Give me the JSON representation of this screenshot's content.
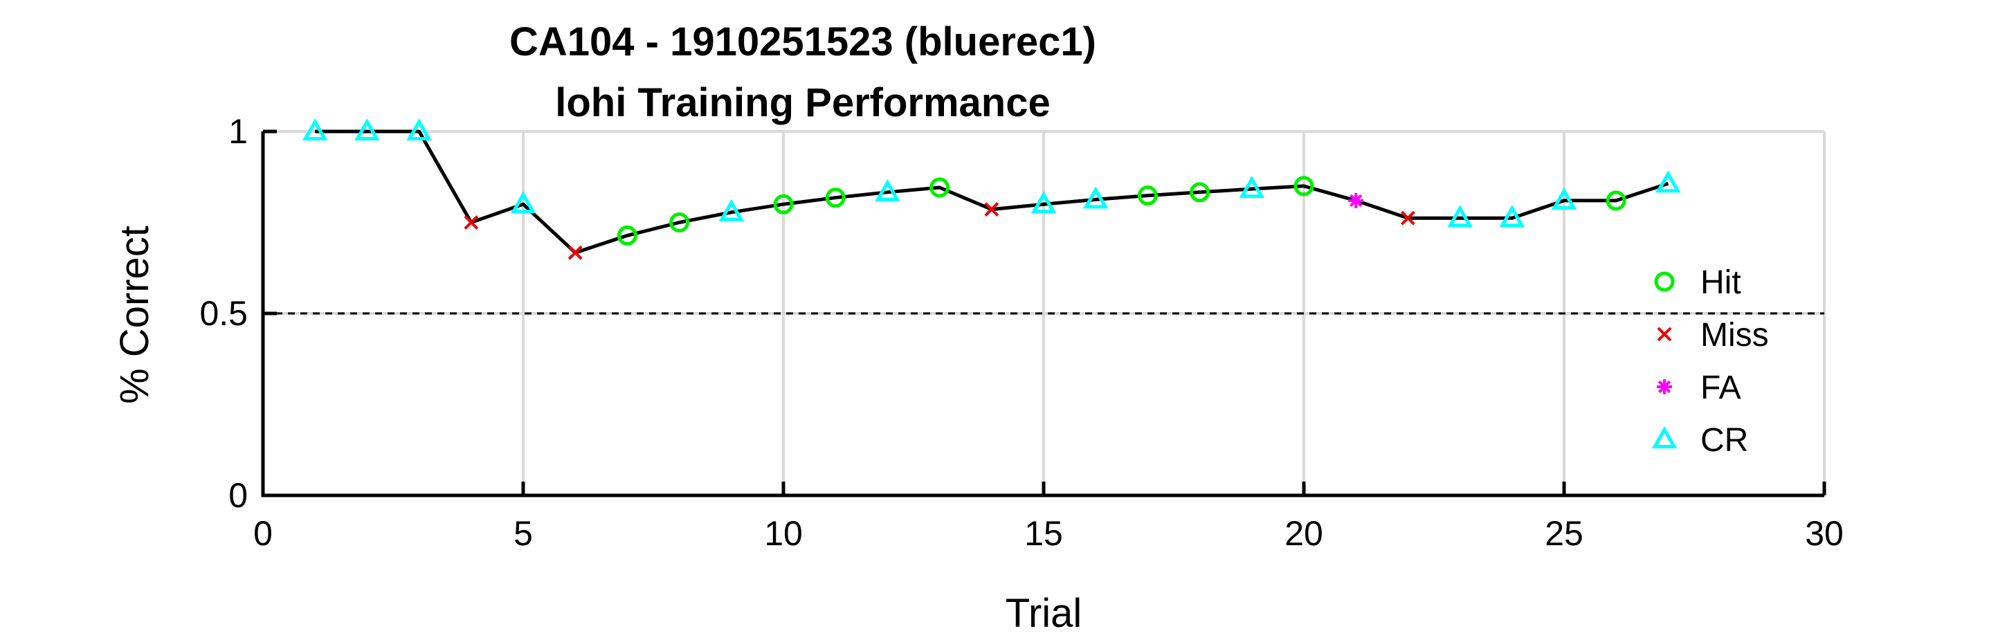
{
  "chart_data": {
    "type": "line",
    "title": "CA104 - 1910251523 (bluerec1)",
    "subtitle": "lohi Training Performance",
    "xlabel": "Trial",
    "ylabel": "% Correct",
    "xlim": [
      0,
      30
    ],
    "ylim": [
      0,
      1
    ],
    "xticks": [
      0,
      5,
      10,
      15,
      20,
      25,
      30
    ],
    "yticks": [
      0,
      0.5,
      1
    ],
    "xtick_labels": [
      "0",
      "5",
      "10",
      "15",
      "20",
      "25",
      "30"
    ],
    "ytick_labels": [
      "0",
      "0.5",
      "1"
    ],
    "grid": true,
    "reference_line": {
      "y": 0.5,
      "style": "dashed"
    },
    "legend_position": "right",
    "line_color": "#000000",
    "legend": [
      {
        "name": "Hit",
        "marker": "circle",
        "color": "#00ee00"
      },
      {
        "name": "Miss",
        "marker": "x",
        "color": "#ee0000"
      },
      {
        "name": "FA",
        "marker": "asterisk",
        "color": "#ff00ff"
      },
      {
        "name": "CR",
        "marker": "triangle",
        "color": "#00ffff"
      }
    ],
    "x": [
      1,
      2,
      3,
      4,
      5,
      6,
      7,
      8,
      9,
      10,
      11,
      12,
      13,
      14,
      15,
      16,
      17,
      18,
      19,
      20,
      21,
      22,
      23,
      24,
      25,
      26,
      27
    ],
    "y": [
      1.0,
      1.0,
      1.0,
      0.75,
      0.8,
      0.667,
      0.714,
      0.75,
      0.778,
      0.8,
      0.818,
      0.833,
      0.846,
      0.786,
      0.8,
      0.813,
      0.824,
      0.833,
      0.842,
      0.85,
      0.81,
      0.762,
      0.762,
      0.762,
      0.81,
      0.81,
      0.857
    ],
    "outcome": [
      "CR",
      "CR",
      "CR",
      "Miss",
      "CR",
      "Miss",
      "Hit",
      "Hit",
      "CR",
      "Hit",
      "Hit",
      "CR",
      "Hit",
      "Miss",
      "CR",
      "CR",
      "Hit",
      "Hit",
      "CR",
      "Hit",
      "FA",
      "Miss",
      "CR",
      "CR",
      "CR",
      "Hit",
      "CR"
    ]
  }
}
